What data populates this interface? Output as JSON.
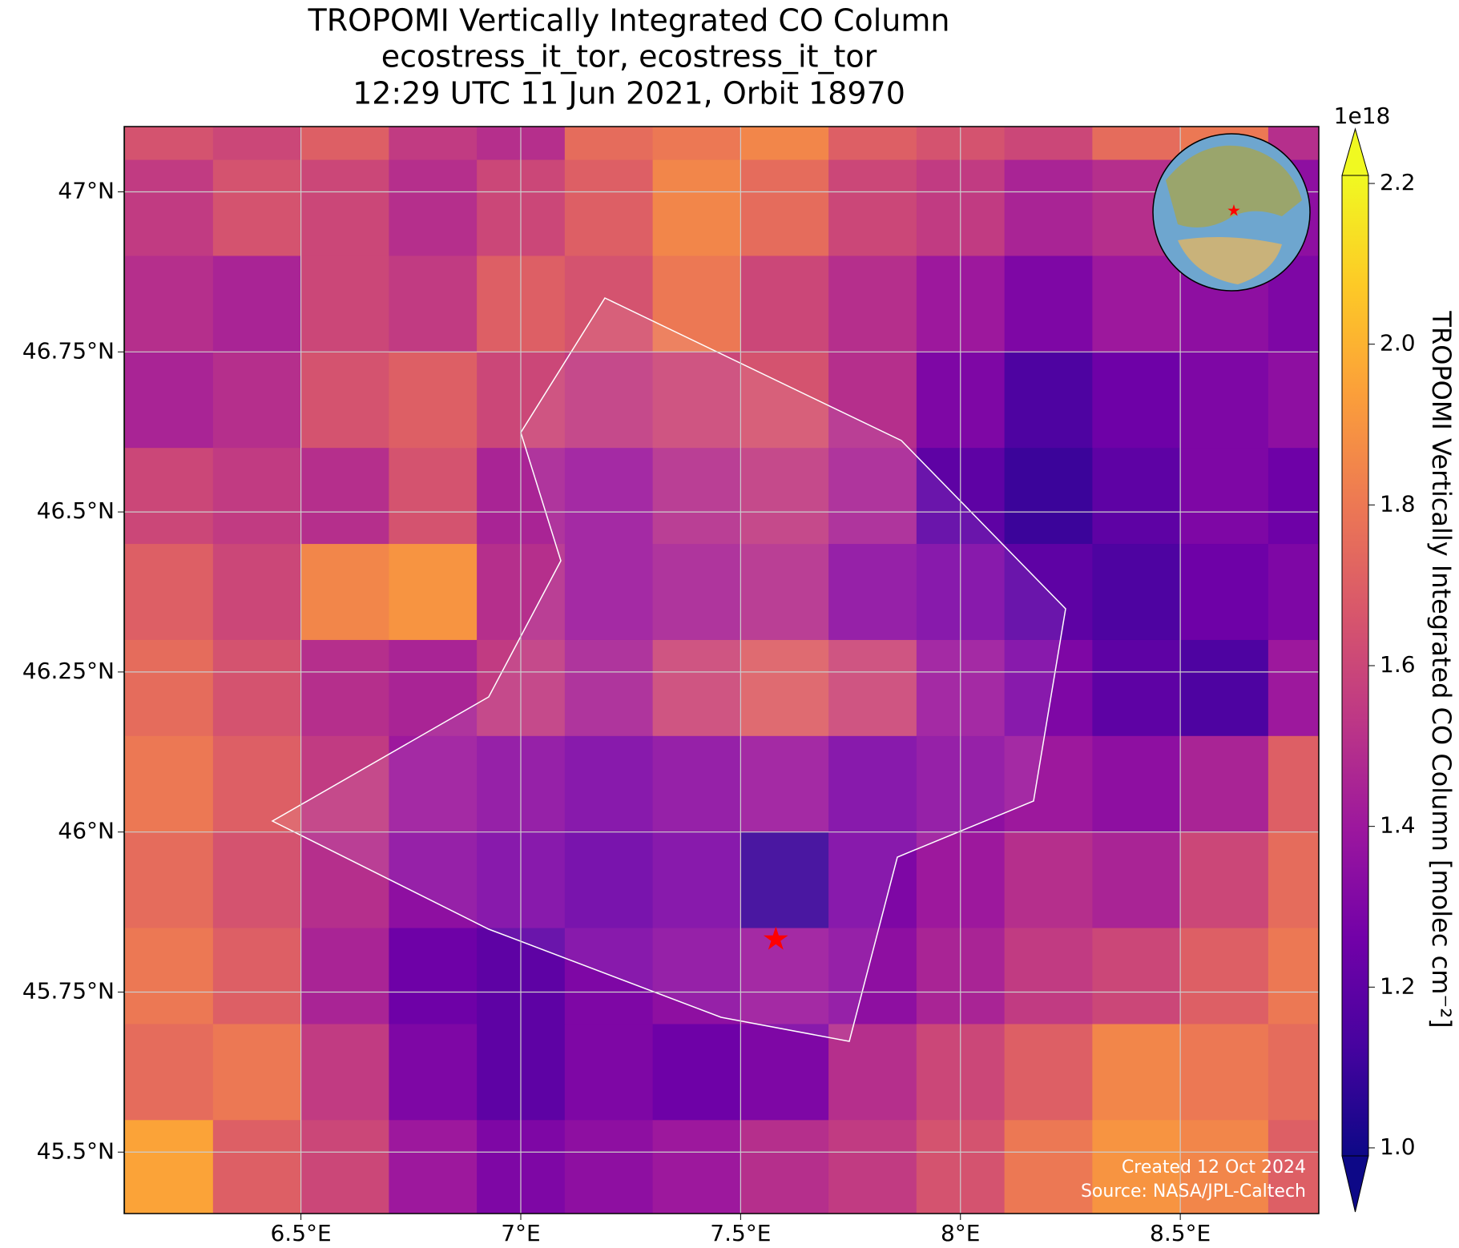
{
  "chart_data": {
    "type": "map",
    "title": [
      "TROPOMI Vertically Integrated CO Column",
      "ecostress_it_tor, ecostress_it_tor",
      "12:29 UTC 11 Jun 2021, Orbit 18970"
    ],
    "xlim": [
      6.098,
      8.815
    ],
    "ylim": [
      45.404,
      47.102
    ],
    "xticks": [
      {
        "value": 6.5,
        "label": "6.5°E"
      },
      {
        "value": 7,
        "label": "7°E"
      },
      {
        "value": 7.5,
        "label": "7.5°E"
      },
      {
        "value": 8,
        "label": "8°E"
      },
      {
        "value": 8.5,
        "label": "8.5°E"
      }
    ],
    "yticks": [
      {
        "value": 45.5,
        "label": "45.5°N"
      },
      {
        "value": 45.75,
        "label": "45.75°N"
      },
      {
        "value": 46,
        "label": "46°N"
      },
      {
        "value": 46.25,
        "label": "46.25°N"
      },
      {
        "value": 46.5,
        "label": "46.5°N"
      },
      {
        "value": 46.75,
        "label": "46.75°N"
      },
      {
        "value": 47,
        "label": "47°N"
      }
    ],
    "grid": true,
    "colormap": "plasma",
    "x": [
      6.1,
      6.3,
      6.5,
      6.7,
      6.9,
      7.1,
      7.3,
      7.5,
      7.7,
      7.9,
      8.1,
      8.3,
      8.5,
      8.7,
      8.9
    ],
    "y": [
      47.2,
      47.05,
      46.9,
      46.75,
      46.6,
      46.45,
      46.3,
      46.15,
      46.0,
      45.85,
      45.7,
      45.55,
      45.4
    ],
    "values": [
      [
        1.65,
        1.6,
        1.7,
        1.55,
        1.5,
        1.75,
        1.8,
        1.85,
        1.7,
        1.65,
        1.6,
        1.75,
        1.8,
        1.5
      ],
      [
        1.55,
        1.65,
        1.6,
        1.5,
        1.6,
        1.7,
        1.85,
        1.75,
        1.6,
        1.55,
        1.45,
        1.5,
        1.6,
        1.35
      ],
      [
        1.5,
        1.45,
        1.6,
        1.55,
        1.7,
        1.65,
        1.8,
        1.6,
        1.5,
        1.4,
        1.3,
        1.4,
        1.35,
        1.3
      ],
      [
        1.45,
        1.5,
        1.65,
        1.7,
        1.6,
        1.55,
        1.6,
        1.65,
        1.5,
        1.3,
        1.15,
        1.25,
        1.3,
        1.35
      ],
      [
        1.6,
        1.55,
        1.5,
        1.65,
        1.45,
        1.4,
        1.5,
        1.55,
        1.45,
        1.2,
        1.1,
        1.2,
        1.3,
        1.25
      ],
      [
        1.7,
        1.6,
        1.85,
        1.9,
        1.5,
        1.4,
        1.45,
        1.5,
        1.35,
        1.3,
        1.2,
        1.15,
        1.25,
        1.3
      ],
      [
        1.75,
        1.65,
        1.5,
        1.45,
        1.55,
        1.45,
        1.6,
        1.7,
        1.6,
        1.4,
        1.3,
        1.2,
        1.15,
        1.4
      ],
      [
        1.8,
        1.7,
        1.55,
        1.4,
        1.35,
        1.3,
        1.35,
        1.4,
        1.3,
        1.35,
        1.4,
        1.35,
        1.45,
        1.7
      ],
      [
        1.75,
        1.65,
        1.5,
        1.35,
        1.3,
        1.25,
        1.3,
        1.1,
        1.3,
        1.4,
        1.5,
        1.45,
        1.6,
        1.75
      ],
      [
        1.8,
        1.7,
        1.45,
        1.25,
        1.2,
        1.3,
        1.35,
        1.4,
        1.35,
        1.45,
        1.55,
        1.6,
        1.7,
        1.8
      ],
      [
        1.75,
        1.8,
        1.55,
        1.3,
        1.2,
        1.3,
        1.25,
        1.3,
        1.5,
        1.6,
        1.7,
        1.85,
        1.8,
        1.75
      ],
      [
        1.95,
        1.7,
        1.6,
        1.4,
        1.3,
        1.35,
        1.4,
        1.5,
        1.55,
        1.65,
        1.8,
        1.9,
        1.85,
        1.7
      ]
    ],
    "marker": {
      "lon": 7.58,
      "lat": 45.83,
      "color": "#ff0000"
    },
    "colorbar": {
      "label": "TROPOMI Vertically Integrated CO Column [molec cm⁻²]",
      "offset": "1e18",
      "lim": [
        0.99,
        2.21
      ],
      "ticks": [
        {
          "value": 1,
          "label": "1.0"
        },
        {
          "value": 1.2,
          "label": "1.2"
        },
        {
          "value": 1.4,
          "label": "1.4"
        },
        {
          "value": 1.6,
          "label": "1.6"
        },
        {
          "value": 1.8,
          "label": "1.8"
        },
        {
          "value": 2,
          "label": "2.0"
        },
        {
          "value": 2.2,
          "label": "2.2"
        }
      ]
    },
    "annotations": [
      "Created 12 Oct 2024",
      "Source: NASA/JPL-Caltech"
    ]
  }
}
